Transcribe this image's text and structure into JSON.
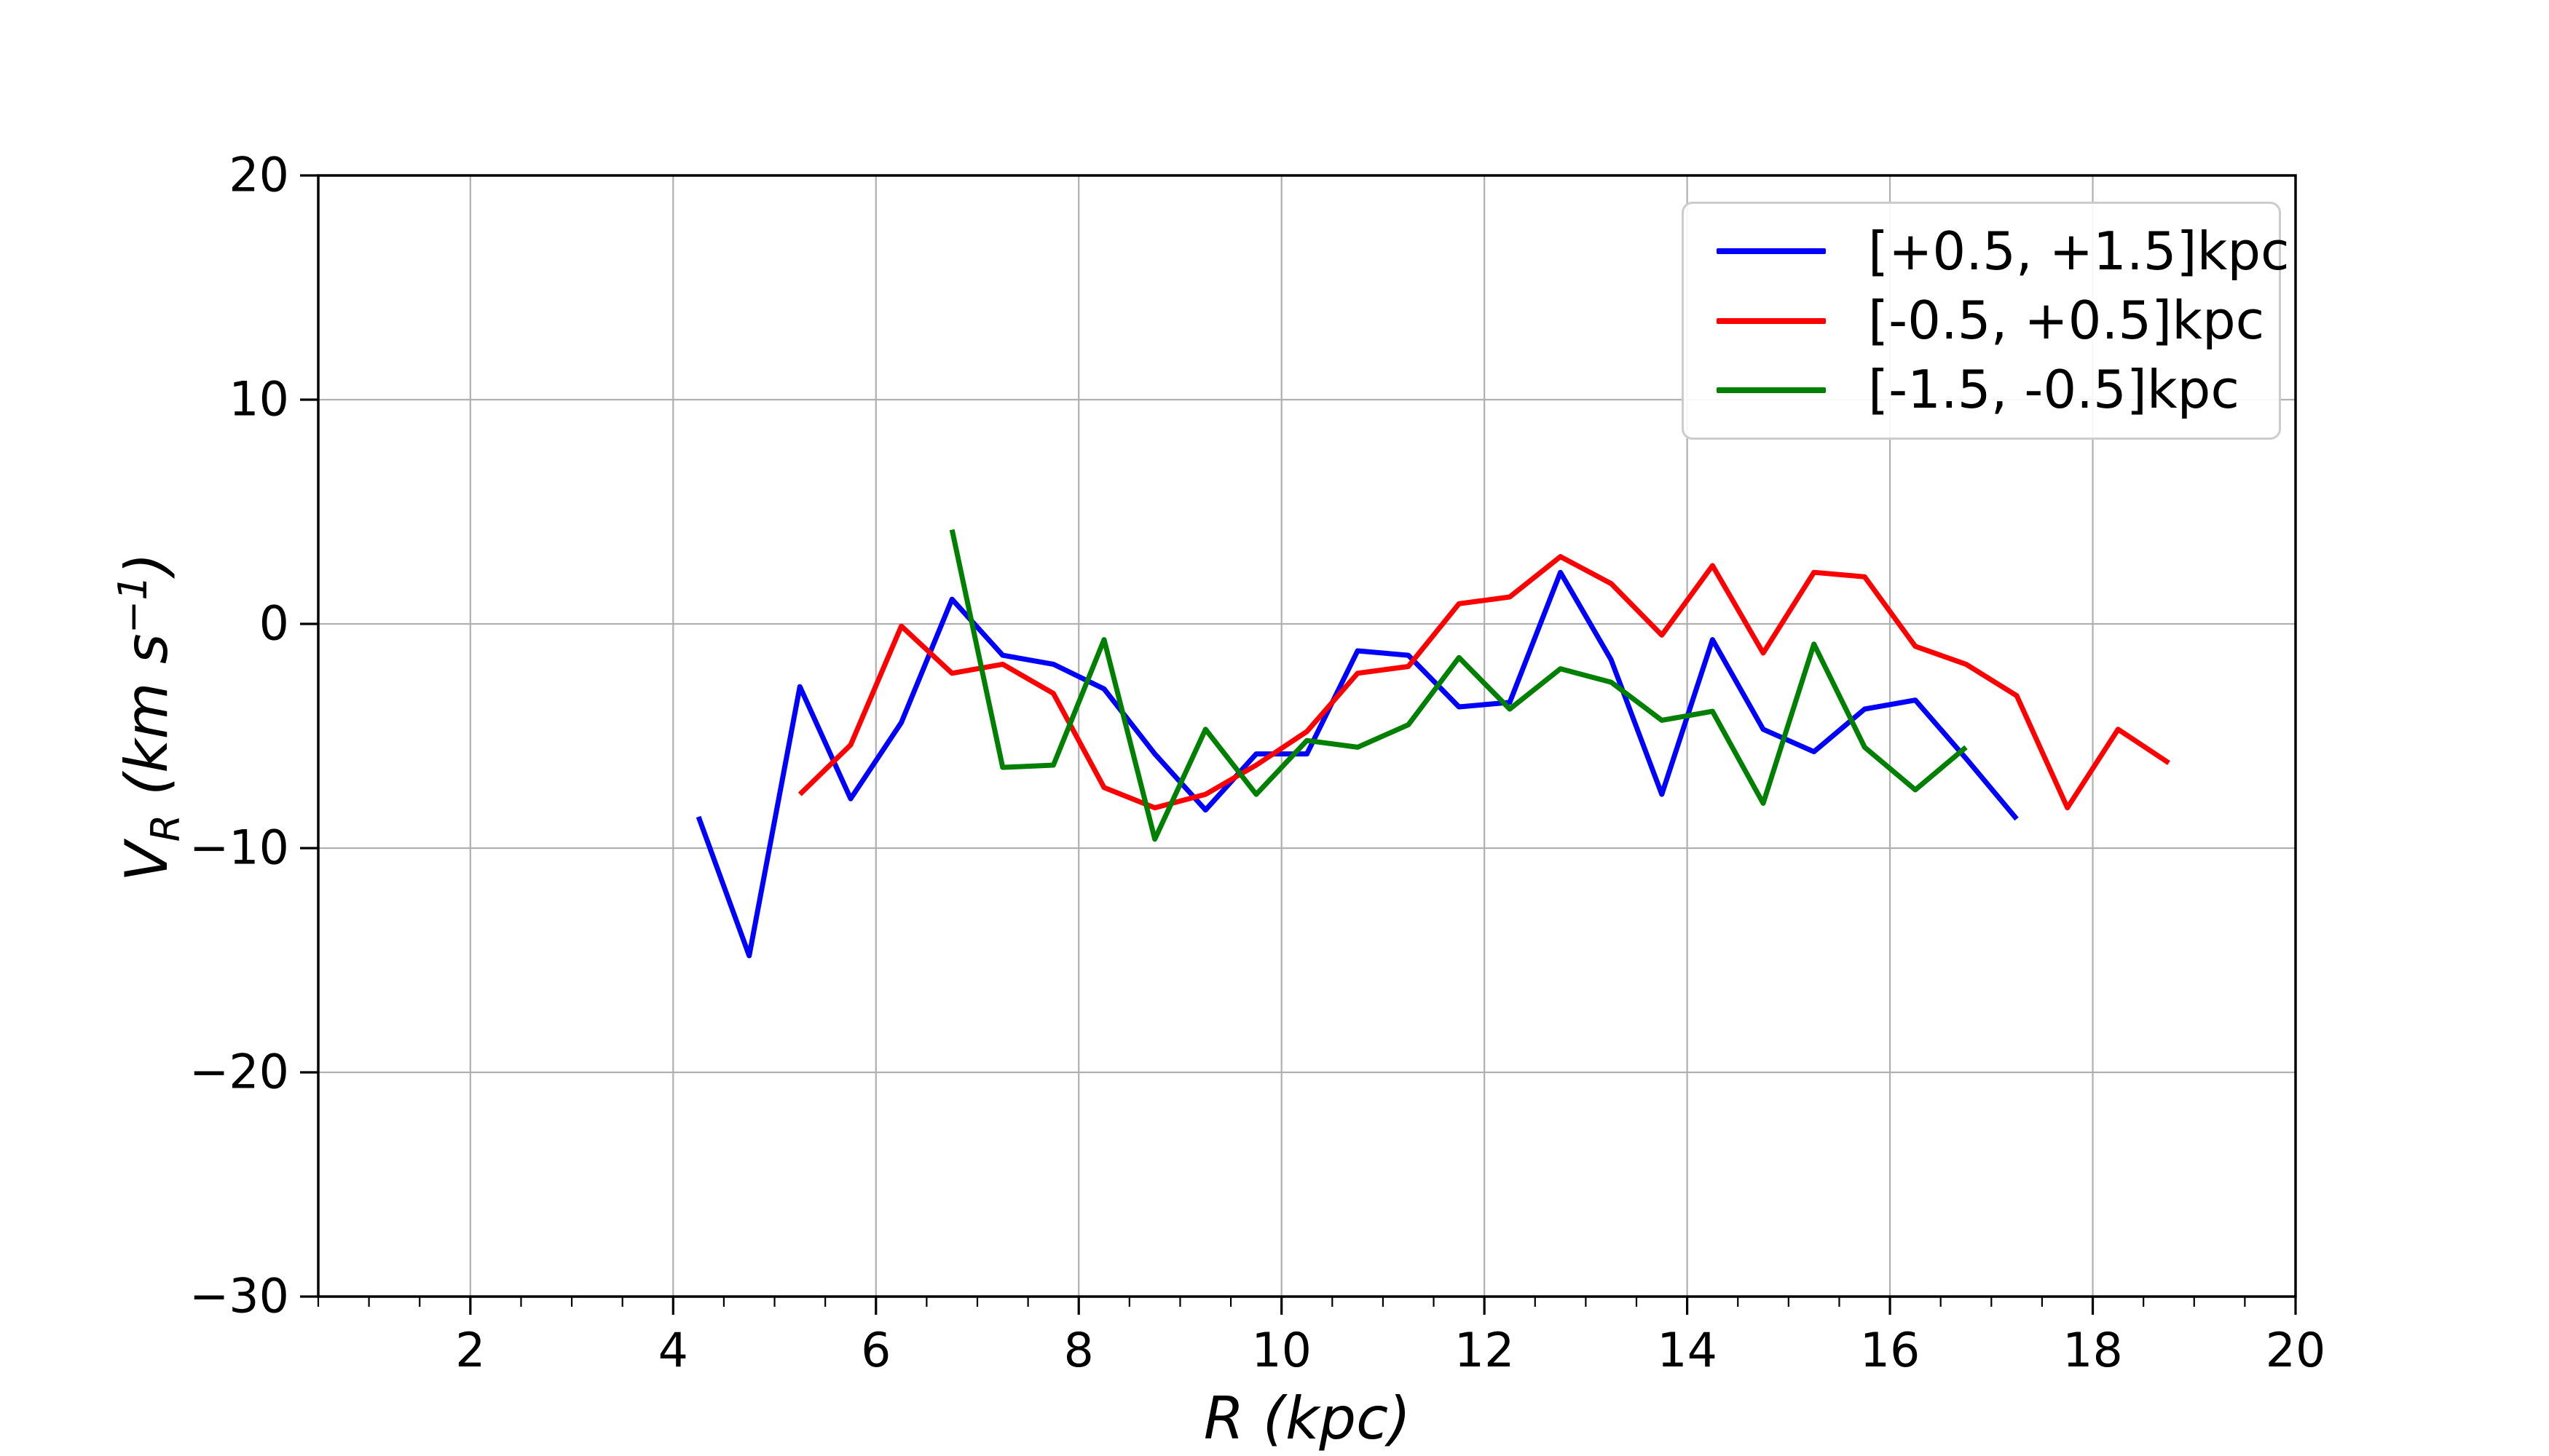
{
  "chart_data": {
    "type": "line",
    "title": "",
    "xlabel": "R (kpc)",
    "ylabel": "V_R (km s^-1)",
    "ylabel_parts": {
      "var": "V",
      "sub": "R",
      "unit_open": "(km s",
      "sup": "−1",
      "unit_close": ")"
    },
    "xlim": [
      0.5,
      20.0
    ],
    "ylim": [
      -30,
      20
    ],
    "xticks": [
      2,
      4,
      6,
      8,
      10,
      12,
      14,
      16,
      18,
      20
    ],
    "yticks": [
      20,
      10,
      0,
      -10,
      -20,
      -30
    ],
    "x_minor_step": 0.5,
    "grid": true,
    "grid_color": "#b0b0b0",
    "legend_position": "upper right",
    "series": [
      {
        "name": "[+0.5, +1.5]kpc",
        "color": "#0000ff",
        "points": [
          [
            4.25,
            -8.6
          ],
          [
            4.75,
            -14.8
          ],
          [
            5.25,
            -2.8
          ],
          [
            5.75,
            -7.8
          ],
          [
            6.25,
            -4.4
          ],
          [
            6.75,
            1.1
          ],
          [
            7.25,
            -1.4
          ],
          [
            7.75,
            -1.8
          ],
          [
            8.25,
            -2.9
          ],
          [
            8.75,
            -5.8
          ],
          [
            9.25,
            -8.3
          ],
          [
            9.75,
            -5.8
          ],
          [
            10.25,
            -5.8
          ],
          [
            10.75,
            -1.2
          ],
          [
            11.25,
            -1.4
          ],
          [
            11.75,
            -3.7
          ],
          [
            12.25,
            -3.5
          ],
          [
            12.75,
            2.3
          ],
          [
            13.25,
            -1.6
          ],
          [
            13.75,
            -7.6
          ],
          [
            14.25,
            -0.7
          ],
          [
            14.75,
            -4.7
          ],
          [
            15.25,
            -5.7
          ],
          [
            15.75,
            -3.8
          ],
          [
            16.25,
            -3.4
          ],
          [
            16.75,
            -6.0
          ],
          [
            17.25,
            -8.7
          ]
        ]
      },
      {
        "name": "[-0.5, +0.5]kpc",
        "color": "#ff0000",
        "points": [
          [
            5.25,
            -7.6
          ],
          [
            5.75,
            -5.4
          ],
          [
            6.25,
            -0.1
          ],
          [
            6.75,
            -2.2
          ],
          [
            7.25,
            -1.8
          ],
          [
            7.75,
            -3.1
          ],
          [
            8.25,
            -7.3
          ],
          [
            8.75,
            -8.2
          ],
          [
            9.25,
            -7.6
          ],
          [
            9.75,
            -6.3
          ],
          [
            10.25,
            -4.8
          ],
          [
            10.75,
            -2.2
          ],
          [
            11.25,
            -1.9
          ],
          [
            11.75,
            0.9
          ],
          [
            12.25,
            1.2
          ],
          [
            12.75,
            3.0
          ],
          [
            13.25,
            1.8
          ],
          [
            13.75,
            -0.5
          ],
          [
            14.25,
            2.6
          ],
          [
            14.75,
            -1.3
          ],
          [
            15.25,
            2.3
          ],
          [
            15.75,
            2.1
          ],
          [
            16.25,
            -1.0
          ],
          [
            16.75,
            -1.8
          ],
          [
            17.25,
            -3.2
          ],
          [
            17.75,
            -8.2
          ],
          [
            18.25,
            -4.7
          ],
          [
            18.75,
            -6.2
          ]
        ]
      },
      {
        "name": "[-1.5, -0.5]kpc",
        "color": "#008000",
        "points": [
          [
            6.75,
            4.2
          ],
          [
            7.25,
            -6.4
          ],
          [
            7.75,
            -6.3
          ],
          [
            8.25,
            -0.7
          ],
          [
            8.75,
            -9.6
          ],
          [
            9.25,
            -4.7
          ],
          [
            9.75,
            -7.6
          ],
          [
            10.25,
            -5.2
          ],
          [
            10.75,
            -5.5
          ],
          [
            11.25,
            -4.5
          ],
          [
            11.75,
            -1.5
          ],
          [
            12.25,
            -3.8
          ],
          [
            12.75,
            -2.0
          ],
          [
            13.25,
            -2.6
          ],
          [
            13.75,
            -4.3
          ],
          [
            14.25,
            -3.9
          ],
          [
            14.75,
            -8.0
          ],
          [
            15.25,
            -0.9
          ],
          [
            15.75,
            -5.5
          ],
          [
            16.25,
            -7.4
          ],
          [
            16.75,
            -5.5
          ]
        ]
      }
    ]
  }
}
